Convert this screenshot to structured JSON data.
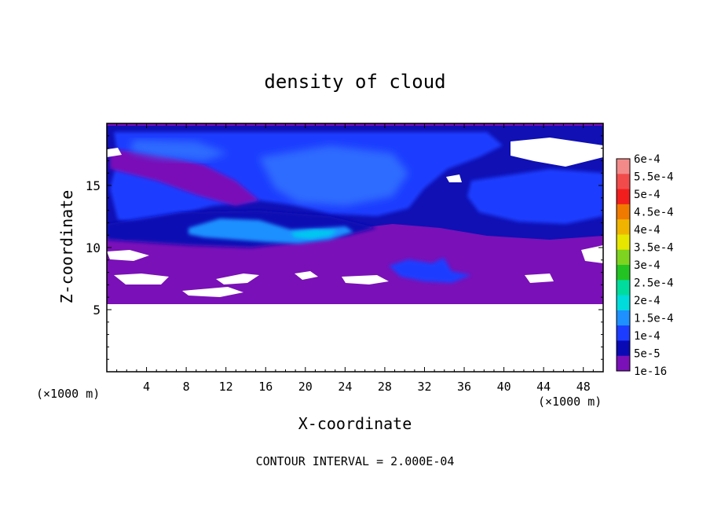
{
  "chart_data": {
    "type": "heatmap",
    "title": "density of cloud",
    "xlabel": "X-coordinate",
    "ylabel": "Z-coordinate",
    "x_unit": "(×1000 m)",
    "y_unit": "(×1000 m)",
    "xlim": [
      0,
      50
    ],
    "ylim": [
      0,
      20
    ],
    "x_ticks": [
      "4",
      "8",
      "12",
      "16",
      "20",
      "24",
      "28",
      "32",
      "36",
      "40",
      "44",
      "48"
    ],
    "y_ticks": [
      "5",
      "10",
      "15"
    ],
    "footer": "CONTOUR INTERVAL = 2.000E-04",
    "colorbar": {
      "labels": [
        "6e-4",
        "5.5e-4",
        "5e-4",
        "4.5e-4",
        "4e-4",
        "3.5e-4",
        "3e-4",
        "2.5e-4",
        "2e-4",
        "1.5e-4",
        "1e-4",
        "5e-5",
        "1e-16"
      ],
      "colors": [
        "#f28a8a",
        "#f24b4b",
        "#f21e1e",
        "#f07a00",
        "#f0b400",
        "#e6e600",
        "#7ed321",
        "#22c322",
        "#00dc9e",
        "#00dcdc",
        "#1e90ff",
        "#1c3cff",
        "#0a0ab4",
        "#7a10b8"
      ]
    },
    "field": {
      "cloud_base_km": 5.3,
      "cloud_top_km": 19.6,
      "max_value": 0.00018,
      "features": [
        {
          "region": "upper layer",
          "x": [
            0,
            50
          ],
          "z": [
            11,
            19.5
          ],
          "level": "5e-5 to 1e-4"
        },
        {
          "region": "core near x=22",
          "x": [
            17,
            28
          ],
          "z": [
            13,
            17.5
          ],
          "level": "1e-4 to 1.5e-4"
        },
        {
          "region": "cyan band",
          "x": [
            8,
            24
          ],
          "z": [
            10.5,
            12
          ],
          "level": "1.5e-4 to 2e-4"
        },
        {
          "region": "lower layer",
          "x": [
            0,
            50
          ],
          "z": [
            5.3,
            11
          ],
          "level": "1e-16 to 5e-5"
        },
        {
          "region": "convective cell",
          "x": [
            29,
            36
          ],
          "z": [
            7,
            9
          ],
          "level": "5e-5 to 1.5e-4"
        }
      ]
    }
  }
}
